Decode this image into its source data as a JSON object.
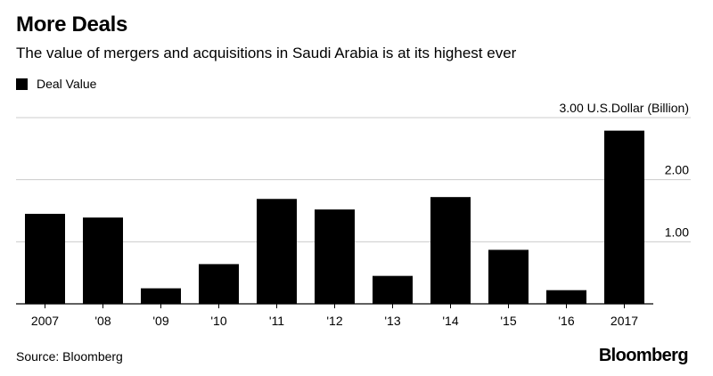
{
  "title": "More Deals",
  "subtitle": "The value of mergers and acquisitions in Saudi Arabia is at its highest ever",
  "source": "Source: Bloomberg",
  "brand": "Bloomberg",
  "colors": {
    "bar": "#000000",
    "grid": "#cccccc",
    "axis": "#000000"
  },
  "chart_data": {
    "type": "bar",
    "title": "More Deals",
    "subtitle": "The value of mergers and acquisitions in Saudi Arabia is at its highest ever",
    "categories": [
      "2007",
      "'08",
      "'09",
      "'10",
      "'11",
      "'12",
      "'13",
      "'14",
      "'15",
      "'16",
      "2017"
    ],
    "series": [
      {
        "name": "Deal Value",
        "values": [
          1.45,
          1.39,
          0.25,
          0.64,
          1.69,
          1.52,
          0.45,
          1.72,
          0.87,
          0.22,
          2.79
        ]
      }
    ],
    "ylim": [
      0,
      3.0
    ],
    "yticks": [
      1.0,
      2.0,
      3.0
    ],
    "ytick_labels": [
      "1.00",
      "2.00",
      "3.00 U.S.Dollar (Billion)"
    ],
    "y_axis_side": "right",
    "grid": true,
    "legend": "top-left"
  }
}
